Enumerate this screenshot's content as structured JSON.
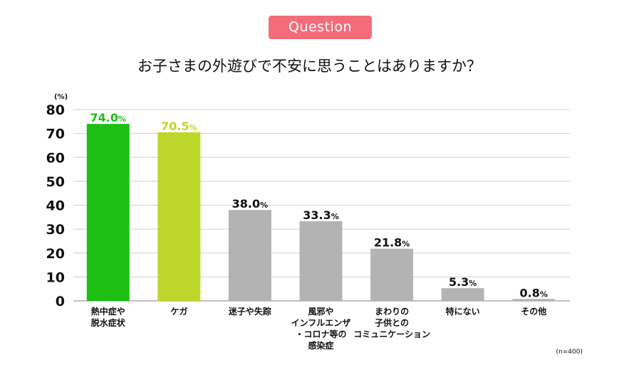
{
  "header": {
    "badge": "Question",
    "question": "お子さまの外遊びで不安に思うことはありますか？"
  },
  "chart_data": {
    "type": "bar",
    "unit_label": "(%)",
    "sample_note": "(n=400)",
    "ylim": [
      0,
      80
    ],
    "yticks": [
      0,
      10,
      20,
      30,
      40,
      50,
      60,
      70,
      80
    ],
    "grid": true,
    "categories": [
      [
        "熱中症や",
        "脱水症状"
      ],
      [
        "ケガ"
      ],
      [
        "迷子や失踪"
      ],
      [
        "風邪や",
        "インフルエンザ",
        "・コロナ等の",
        "感染症"
      ],
      [
        "まわりの",
        "子供との",
        "コミュニケーション"
      ],
      [
        "特にない"
      ],
      [
        "その他"
      ]
    ],
    "values": [
      74.0,
      70.5,
      38.0,
      33.3,
      21.8,
      5.3,
      0.8
    ],
    "value_labels": [
      "74.0",
      "70.5",
      "38.0",
      "33.3",
      "21.8",
      "5.3",
      "0.8"
    ],
    "value_suffix": "%",
    "colors": [
      "#1dbf12",
      "#bdd72a",
      "#b3b3b3",
      "#b3b3b3",
      "#b3b3b3",
      "#b3b3b3",
      "#b3b3b3"
    ],
    "label_colors": [
      "#1dbf12",
      "#bdd72a",
      "#111111",
      "#111111",
      "#111111",
      "#111111",
      "#111111"
    ]
  }
}
